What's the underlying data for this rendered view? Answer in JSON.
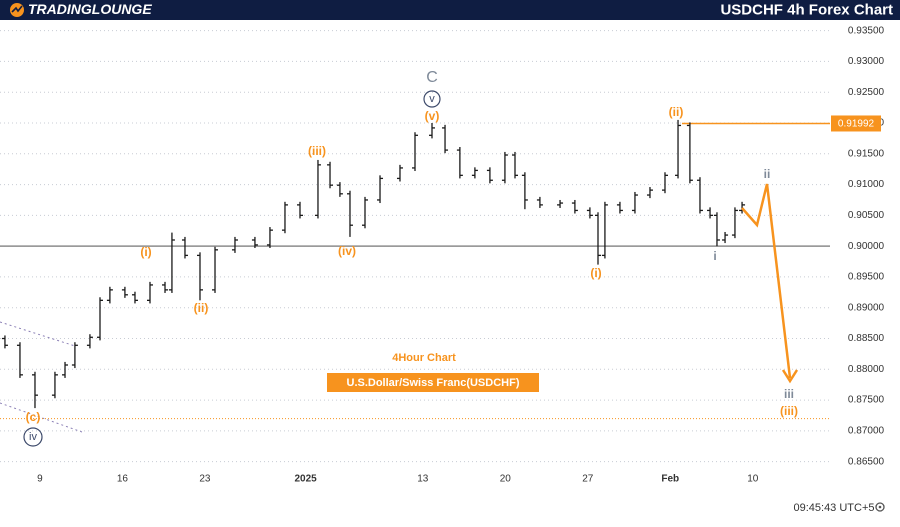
{
  "logo": "TRADINGLOUNGE",
  "chart_data": {
    "type": "ohlc",
    "title": "USDCHF 4h Forex Chart",
    "color": "#1a1a1a",
    "x": [
      -2.12,
      -1.21,
      -0.3,
      0.91,
      1.52,
      2.12,
      3.03,
      3.64,
      4.24,
      5.15,
      5.76,
      6.67,
      7.58,
      8.0,
      8.79,
      9.7,
      10.61,
      11.82,
      13.03,
      13.94,
      14.85,
      15.76,
      16.85,
      17.58,
      18.18,
      18.79,
      19.7,
      20.61,
      21.82,
      22.73,
      23.76,
      24.55,
      25.45,
      26.36,
      27.27,
      28.18,
      28.79,
      29.39,
      30.3,
      31.52,
      32.42,
      33.33,
      33.82,
      34.24,
      35.15,
      36.06,
      36.97,
      37.88,
      38.67,
      39.39,
      40.0,
      40.61,
      41.03,
      41.52,
      42.12,
      42.55
    ],
    "open": [
      0.885,
      0.8839,
      0.8791,
      0.8758,
      0.8791,
      0.8807,
      0.8839,
      0.8852,
      0.8912,
      0.8929,
      0.8921,
      0.8912,
      0.8937,
      0.8929,
      0.901,
      0.8985,
      0.8929,
      0.8994,
      0.901,
      0.9002,
      0.9026,
      0.9067,
      0.905,
      0.9132,
      0.9099,
      0.9085,
      0.9034,
      0.9075,
      0.911,
      0.9127,
      0.918,
      0.9192,
      0.9156,
      0.9115,
      0.9123,
      0.9107,
      0.9148,
      0.9115,
      0.9075,
      0.9067,
      0.907,
      0.9058,
      0.905,
      0.8985,
      0.9067,
      0.9058,
      0.9083,
      0.9091,
      0.9115,
      0.9196,
      0.9107,
      0.9058,
      0.905,
      0.901,
      0.9018,
      0.9058
    ],
    "high": [
      0.8855,
      0.8844,
      0.8796,
      0.8796,
      0.8812,
      0.8844,
      0.8857,
      0.8917,
      0.8934,
      0.8934,
      0.8926,
      0.8942,
      0.8942,
      0.9022,
      0.9015,
      0.899,
      0.8999,
      0.9015,
      0.9015,
      0.9031,
      0.9072,
      0.9072,
      0.914,
      0.9137,
      0.9104,
      0.909,
      0.908,
      0.9115,
      0.9132,
      0.9185,
      0.92,
      0.9197,
      0.9161,
      0.9128,
      0.9128,
      0.9153,
      0.9153,
      0.912,
      0.908,
      0.9075,
      0.9075,
      0.9063,
      0.9055,
      0.9072,
      0.9072,
      0.9088,
      0.9096,
      0.912,
      0.9205,
      0.9201,
      0.9112,
      0.9063,
      0.9055,
      0.9023,
      0.9063,
      0.9072
    ],
    "low": [
      0.8834,
      0.8786,
      0.8737,
      0.8753,
      0.8786,
      0.8802,
      0.8834,
      0.8847,
      0.8907,
      0.8916,
      0.8907,
      0.8907,
      0.8924,
      0.8924,
      0.898,
      0.8912,
      0.8924,
      0.8989,
      0.8997,
      0.8997,
      0.9021,
      0.9045,
      0.9045,
      0.9094,
      0.908,
      0.9015,
      0.9029,
      0.907,
      0.9105,
      0.9122,
      0.9175,
      0.9151,
      0.911,
      0.911,
      0.9102,
      0.9102,
      0.911,
      0.906,
      0.9062,
      0.9062,
      0.9053,
      0.9045,
      0.897,
      0.898,
      0.9053,
      0.9053,
      0.9078,
      0.9086,
      0.911,
      0.9102,
      0.9053,
      0.9045,
      0.9,
      0.9005,
      0.9013,
      0.9053
    ],
    "close": [
      0.8839,
      0.8791,
      0.8758,
      0.8791,
      0.8807,
      0.8839,
      0.8852,
      0.8912,
      0.8929,
      0.8921,
      0.8912,
      0.8937,
      0.8929,
      0.901,
      0.8985,
      0.8929,
      0.8994,
      0.901,
      0.9002,
      0.9026,
      0.9067,
      0.905,
      0.9132,
      0.9099,
      0.9085,
      0.9034,
      0.9075,
      0.911,
      0.9127,
      0.918,
      0.9192,
      0.9156,
      0.9115,
      0.9123,
      0.9107,
      0.9148,
      0.9115,
      0.9075,
      0.9067,
      0.907,
      0.9058,
      0.905,
      0.8985,
      0.9067,
      0.9058,
      0.9083,
      0.9091,
      0.9115,
      0.9196,
      0.9107,
      0.9058,
      0.905,
      0.901,
      0.9018,
      0.9058,
      0.9067
    ],
    "xlim": [
      -2.42,
      47.88
    ],
    "xticks": [
      {
        "value": 0,
        "label": "9"
      },
      {
        "value": 5,
        "label": "16"
      },
      {
        "value": 10,
        "label": "23"
      },
      {
        "value": 16.1,
        "label": "2025"
      },
      {
        "value": 23.2,
        "label": "13"
      },
      {
        "value": 28.2,
        "label": "20"
      },
      {
        "value": 33.2,
        "label": "27"
      },
      {
        "value": 38.2,
        "label": "Feb"
      },
      {
        "value": 43.2,
        "label": "10"
      }
    ],
    "ylim": [
      0.8604,
      0.9364
    ],
    "yticks": [
      {
        "value": 0.865,
        "label": "0.86500"
      },
      {
        "value": 0.87,
        "label": "0.87000"
      },
      {
        "value": 0.875,
        "label": "0.87500"
      },
      {
        "value": 0.88,
        "label": "0.88000"
      },
      {
        "value": 0.885,
        "label": "0.88500"
      },
      {
        "value": 0.89,
        "label": "0.89000"
      },
      {
        "value": 0.895,
        "label": "0.89500"
      },
      {
        "value": 0.9,
        "label": "0.90000"
      },
      {
        "value": 0.905,
        "label": "0.90500"
      },
      {
        "value": 0.91,
        "label": "0.91000"
      },
      {
        "value": 0.915,
        "label": "0.91500"
      },
      {
        "value": 0.92,
        "label": "0.92000"
      },
      {
        "value": 0.925,
        "label": "0.92500"
      },
      {
        "value": 0.93,
        "label": "0.93000"
      },
      {
        "value": 0.935,
        "label": "0.93500"
      }
    ],
    "grid": true,
    "support_level": 0.9,
    "target_level": 0.872,
    "price_line": {
      "value": 0.91992,
      "color": "#f7931e"
    },
    "wave_labels": [
      "(i)",
      "(ii)",
      "(iii)",
      "(iv)",
      "(v)",
      "C",
      "v",
      "(c)",
      "iv",
      "(i)",
      "(ii)",
      "i",
      "ii",
      "iii",
      "(iii)"
    ],
    "annotations": [
      "4Hour Chart",
      "U.S.Dollar/Swiss Franc(USDCHF)"
    ],
    "time": "09:45:43 UTC+5"
  }
}
